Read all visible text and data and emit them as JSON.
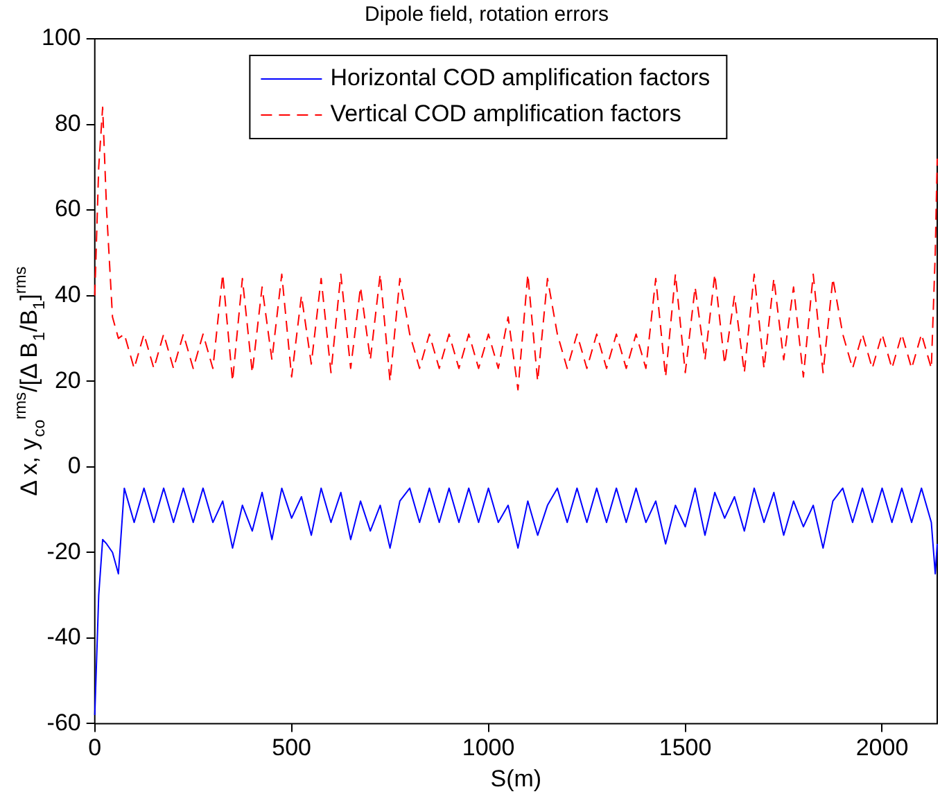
{
  "chart_data": {
    "type": "line",
    "title": "Dipole field, rotation errors",
    "xlabel": "S(m)",
    "ylabel": "Δ x, y$_{co}$$^{rms}$/[Δ B$_{1}$/B$_{1}$]$^{rms}$",
    "xlim": [
      0,
      2140
    ],
    "xticks": [
      0,
      500,
      1000,
      1500,
      2000
    ],
    "ylim": [
      -60,
      100
    ],
    "yticks": [
      -60,
      -40,
      -20,
      0,
      20,
      40,
      60,
      80,
      100
    ],
    "grid": false,
    "legend": "top",
    "marker": "none",
    "series": [
      {
        "name": "Horizontal COD amplification factors",
        "color": "#0000ff",
        "line_style": "solid",
        "x": [
          0,
          10,
          20,
          30,
          45,
          60,
          75,
          100,
          125,
          150,
          175,
          200,
          225,
          250,
          275,
          300,
          325,
          350,
          375,
          400,
          425,
          450,
          475,
          500,
          525,
          550,
          575,
          600,
          625,
          650,
          675,
          700,
          725,
          750,
          775,
          800,
          825,
          850,
          875,
          900,
          925,
          950,
          975,
          1000,
          1025,
          1050,
          1075,
          1100,
          1125,
          1150,
          1175,
          1200,
          1225,
          1250,
          1275,
          1300,
          1325,
          1350,
          1375,
          1400,
          1425,
          1450,
          1475,
          1500,
          1525,
          1550,
          1575,
          1600,
          1625,
          1650,
          1675,
          1700,
          1725,
          1750,
          1775,
          1800,
          1825,
          1850,
          1875,
          1900,
          1925,
          1950,
          1975,
          2000,
          2025,
          2050,
          2075,
          2100,
          2125,
          2135,
          2140
        ],
        "values": [
          -58,
          -30,
          -17,
          -18,
          -20,
          -25,
          -5,
          -13,
          -5,
          -13,
          -5,
          -13,
          -5,
          -13,
          -5,
          -13,
          -8,
          -19,
          -9,
          -15,
          -6,
          -17,
          -5,
          -12,
          -7,
          -16,
          -5,
          -13,
          -6,
          -17,
          -8,
          -15,
          -9,
          -19,
          -8,
          -5,
          -13,
          -5,
          -13,
          -5,
          -13,
          -5,
          -13,
          -5,
          -13,
          -9,
          -19,
          -8,
          -16,
          -9,
          -5,
          -13,
          -5,
          -13,
          -5,
          -13,
          -5,
          -13,
          -5,
          -13,
          -8,
          -18,
          -9,
          -14,
          -5,
          -16,
          -6,
          -12,
          -7,
          -15,
          -5,
          -13,
          -6,
          -16,
          -8,
          -14,
          -9,
          -19,
          -8,
          -5,
          -13,
          -5,
          -13,
          -5,
          -13,
          -5,
          -13,
          -5,
          -13,
          -25,
          -18
        ]
      },
      {
        "name": "Vertical COD amplification factors",
        "color": "#ff0000",
        "line_style": "dashed",
        "x": [
          0,
          10,
          20,
          30,
          45,
          60,
          75,
          100,
          125,
          150,
          175,
          200,
          225,
          250,
          275,
          300,
          325,
          350,
          375,
          400,
          425,
          450,
          475,
          500,
          525,
          550,
          575,
          600,
          625,
          650,
          675,
          700,
          725,
          750,
          775,
          800,
          825,
          850,
          875,
          900,
          925,
          950,
          975,
          1000,
          1025,
          1050,
          1075,
          1100,
          1125,
          1150,
          1175,
          1200,
          1225,
          1250,
          1275,
          1300,
          1325,
          1350,
          1375,
          1400,
          1425,
          1450,
          1475,
          1500,
          1525,
          1550,
          1575,
          1600,
          1625,
          1650,
          1675,
          1700,
          1725,
          1750,
          1775,
          1800,
          1825,
          1850,
          1875,
          1900,
          1925,
          1950,
          1975,
          2000,
          2025,
          2050,
          2075,
          2100,
          2125,
          2135,
          2140
        ],
        "values": [
          40,
          70,
          84,
          60,
          35,
          30,
          31,
          23,
          31,
          23,
          31,
          23,
          31,
          23,
          31,
          23,
          45,
          20,
          44,
          22,
          42,
          25,
          45,
          21,
          40,
          24,
          44,
          22,
          45,
          23,
          42,
          25,
          45,
          20,
          44,
          31,
          23,
          31,
          23,
          31,
          23,
          31,
          23,
          31,
          23,
          35,
          18,
          45,
          20,
          44,
          31,
          23,
          31,
          23,
          31,
          23,
          31,
          23,
          31,
          23,
          44,
          21,
          45,
          22,
          42,
          25,
          45,
          24,
          40,
          22,
          45,
          23,
          44,
          25,
          42,
          21,
          45,
          22,
          44,
          31,
          23,
          31,
          23,
          31,
          23,
          31,
          23,
          31,
          23,
          50,
          72
        ]
      }
    ]
  }
}
